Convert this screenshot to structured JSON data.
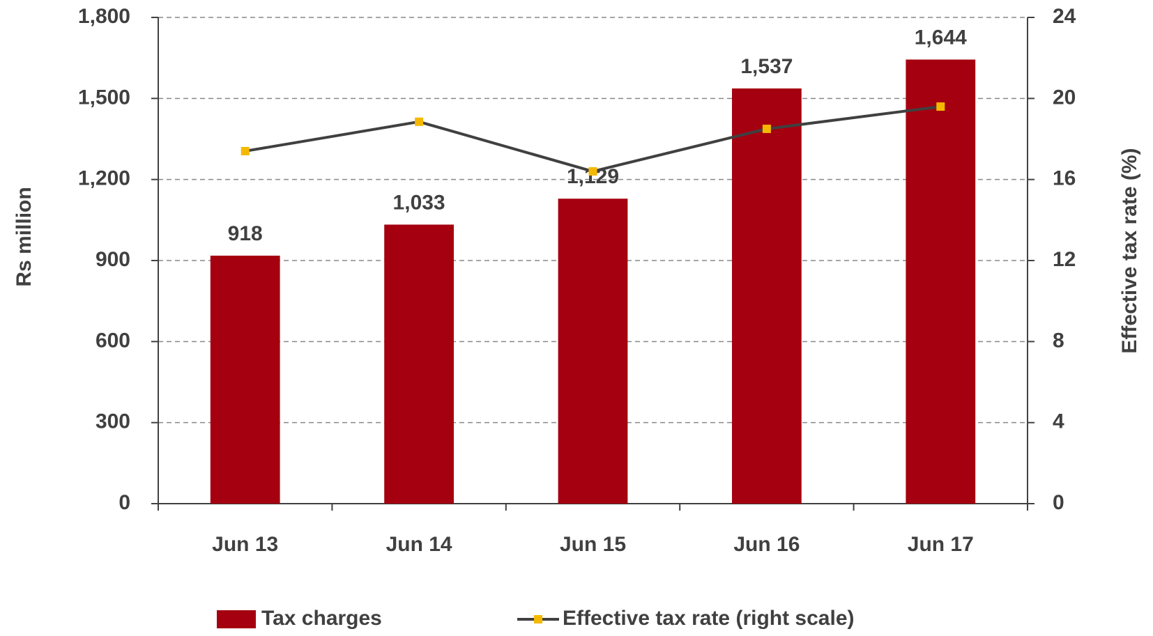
{
  "chart_data": {
    "type": "bar_line",
    "categories": [
      "Jun 13",
      "Jun 14",
      "Jun 15",
      "Jun 16",
      "Jun 17"
    ],
    "series": [
      {
        "name": "Tax charges",
        "color": "#a50010",
        "type": "bar",
        "values": [
          918,
          1033,
          1129,
          1537,
          1644
        ],
        "value_labels": [
          "918",
          "1,033",
          "1,129",
          "1,537",
          "1,644"
        ]
      },
      {
        "name": "Effective tax rate (right scale)",
        "color": "#404040",
        "marker_color": "#f5b800",
        "type": "line",
        "axis": "y2",
        "values": [
          17.4,
          18.85,
          16.4,
          18.5,
          19.6
        ]
      }
    ],
    "ylabel": "Rs million",
    "y2label": "Effective tax rate (%)",
    "ylim": [
      0,
      1800
    ],
    "yticks": [
      0,
      300,
      600,
      900,
      {
        "value": 1200,
        "label": "1,200"
      },
      {
        "value": 1500,
        "label": "1,500"
      },
      {
        "value": 1800,
        "label": "1,800"
      }
    ],
    "y2lim": [
      0,
      24
    ],
    "y2ticks": [
      0,
      4,
      8,
      12,
      16,
      20,
      24
    ],
    "grid": true,
    "legend": "bottom"
  }
}
